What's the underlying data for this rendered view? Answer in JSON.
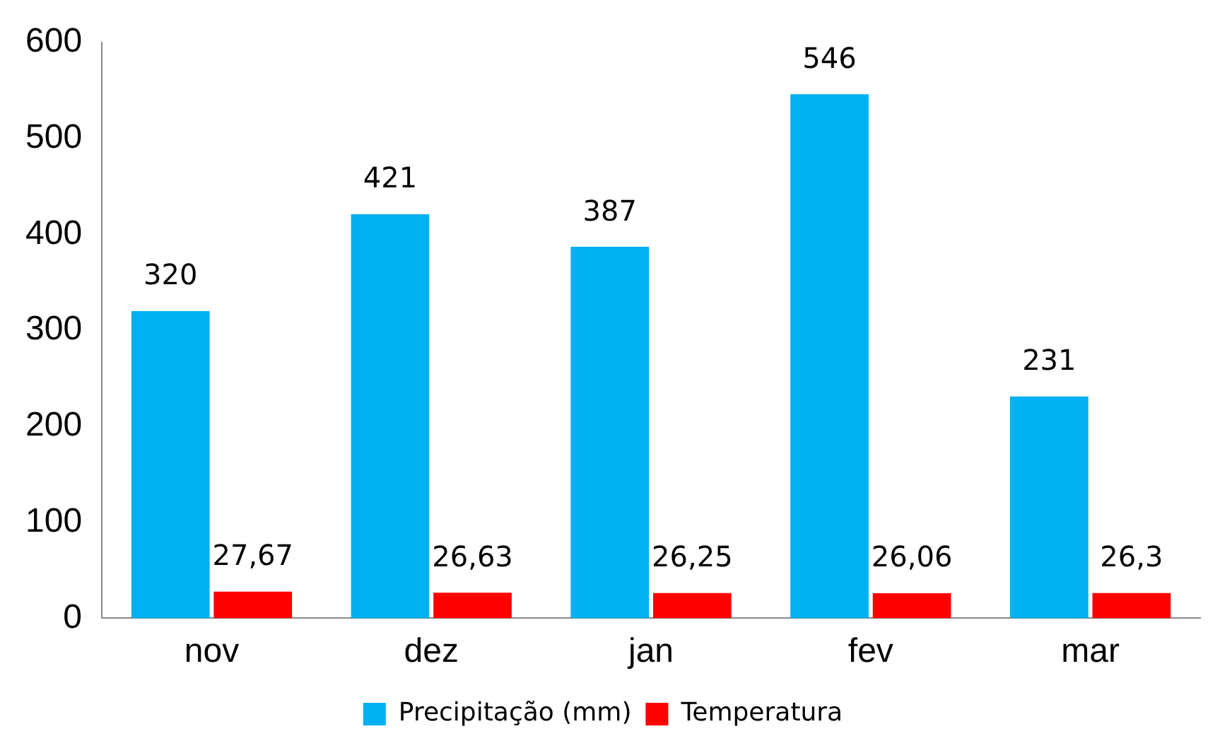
{
  "chart_data": {
    "type": "bar",
    "categories": [
      "nov",
      "dez",
      "jan",
      "fev",
      "mar"
    ],
    "series": [
      {
        "name": "Precipitação (mm)",
        "color": "#00b0f0",
        "values": [
          320,
          421,
          387,
          546,
          231
        ],
        "value_labels": [
          "320",
          "421",
          "387",
          "546",
          "231"
        ]
      },
      {
        "name": "Temperatura",
        "color": "#ff0000",
        "values": [
          27.67,
          26.63,
          26.25,
          26.06,
          26.3
        ],
        "value_labels": [
          "27,67",
          "26,63",
          "26,25",
          "26,06",
          "26,3"
        ]
      }
    ],
    "ylim": [
      0,
      600
    ],
    "yticks": [
      0,
      100,
      200,
      300,
      400,
      500,
      600
    ],
    "grid": false,
    "legend": "bottom"
  }
}
